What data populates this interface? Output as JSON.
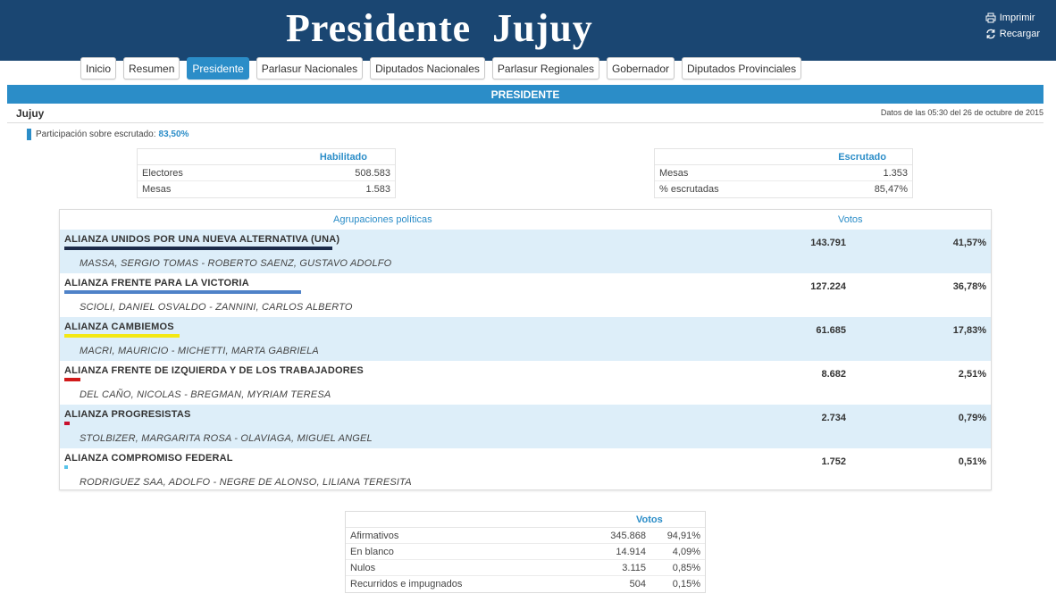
{
  "header": {
    "title": "Presidente  Jujuy",
    "print_label": "Imprimir",
    "reload_label": "Recargar"
  },
  "tabs": [
    {
      "label": "Inicio",
      "active": false
    },
    {
      "label": "Resumen",
      "active": false
    },
    {
      "label": "Presidente",
      "active": true
    },
    {
      "label": "Parlasur Nacionales",
      "active": false
    },
    {
      "label": "Diputados Nacionales",
      "active": false
    },
    {
      "label": "Parlasur Regionales",
      "active": false
    },
    {
      "label": "Gobernador",
      "active": false
    },
    {
      "label": "Diputados Provinciales",
      "active": false
    }
  ],
  "section_title": "PRESIDENTE",
  "region": "Jujuy",
  "updated": "Datos de las 05:30 del 26 de octubre de 2015",
  "participation": {
    "label": "Participación sobre escrutado:",
    "value": "83,50%"
  },
  "habilitado": {
    "title": "Habilitado",
    "rows": [
      {
        "label": "Electores",
        "value": "508.583"
      },
      {
        "label": "Mesas",
        "value": "1.583"
      }
    ]
  },
  "escrutado": {
    "title": "Escrutado",
    "rows": [
      {
        "label": "Mesas",
        "value": "1.353"
      },
      {
        "label": "% escrutadas",
        "value": "85,47%"
      }
    ]
  },
  "parties_header": {
    "col1": "Agrupaciones políticas",
    "col2": "Votos"
  },
  "parties": [
    {
      "name": "ALIANZA UNIDOS POR UNA NUEVA ALTERNATIVA (UNA)",
      "candidates": "MASSA, SERGIO TOMAS - ROBERTO SAENZ, GUSTAVO ADOLFO",
      "votes": "143.791",
      "pct": "41,57%",
      "pct_value": 41.57,
      "color": "#1c2b4a"
    },
    {
      "name": "ALIANZA FRENTE PARA LA VICTORIA",
      "candidates": "SCIOLI, DANIEL OSVALDO - ZANNINI, CARLOS ALBERTO",
      "votes": "127.224",
      "pct": "36,78%",
      "pct_value": 36.78,
      "color": "#4f82c8"
    },
    {
      "name": "ALIANZA CAMBIEMOS",
      "candidates": "MACRI, MAURICIO - MICHETTI, MARTA GABRIELA",
      "votes": "61.685",
      "pct": "17,83%",
      "pct_value": 17.83,
      "color": "#f3e814"
    },
    {
      "name": "ALIANZA FRENTE DE IZQUIERDA Y DE LOS TRABAJADORES",
      "candidates": "DEL CAÑO, NICOLAS - BREGMAN, MYRIAM TERESA",
      "votes": "8.682",
      "pct": "2,51%",
      "pct_value": 2.51,
      "color": "#d11a1a"
    },
    {
      "name": "ALIANZA PROGRESISTAS",
      "candidates": "STOLBIZER, MARGARITA ROSA - OLAVIAGA, MIGUEL ANGEL",
      "votes": "2.734",
      "pct": "0,79%",
      "pct_value": 0.79,
      "color": "#c8102e"
    },
    {
      "name": "ALIANZA COMPROMISO FEDERAL",
      "candidates": "RODRIGUEZ SAA, ADOLFO - NEGRE DE ALONSO, LILIANA TERESITA",
      "votes": "1.752",
      "pct": "0,51%",
      "pct_value": 0.51,
      "color": "#58c3ea"
    }
  ],
  "summary": {
    "title": "Votos",
    "rows": [
      {
        "label": "Afirmativos",
        "votes": "345.868",
        "pct": "94,91%"
      },
      {
        "label": "En blanco",
        "votes": "14.914",
        "pct": "4,09%"
      },
      {
        "label": "Nulos",
        "votes": "3.115",
        "pct": "0,85%"
      },
      {
        "label": "Recurridos e impugnados",
        "votes": "504",
        "pct": "0,15%"
      }
    ]
  }
}
